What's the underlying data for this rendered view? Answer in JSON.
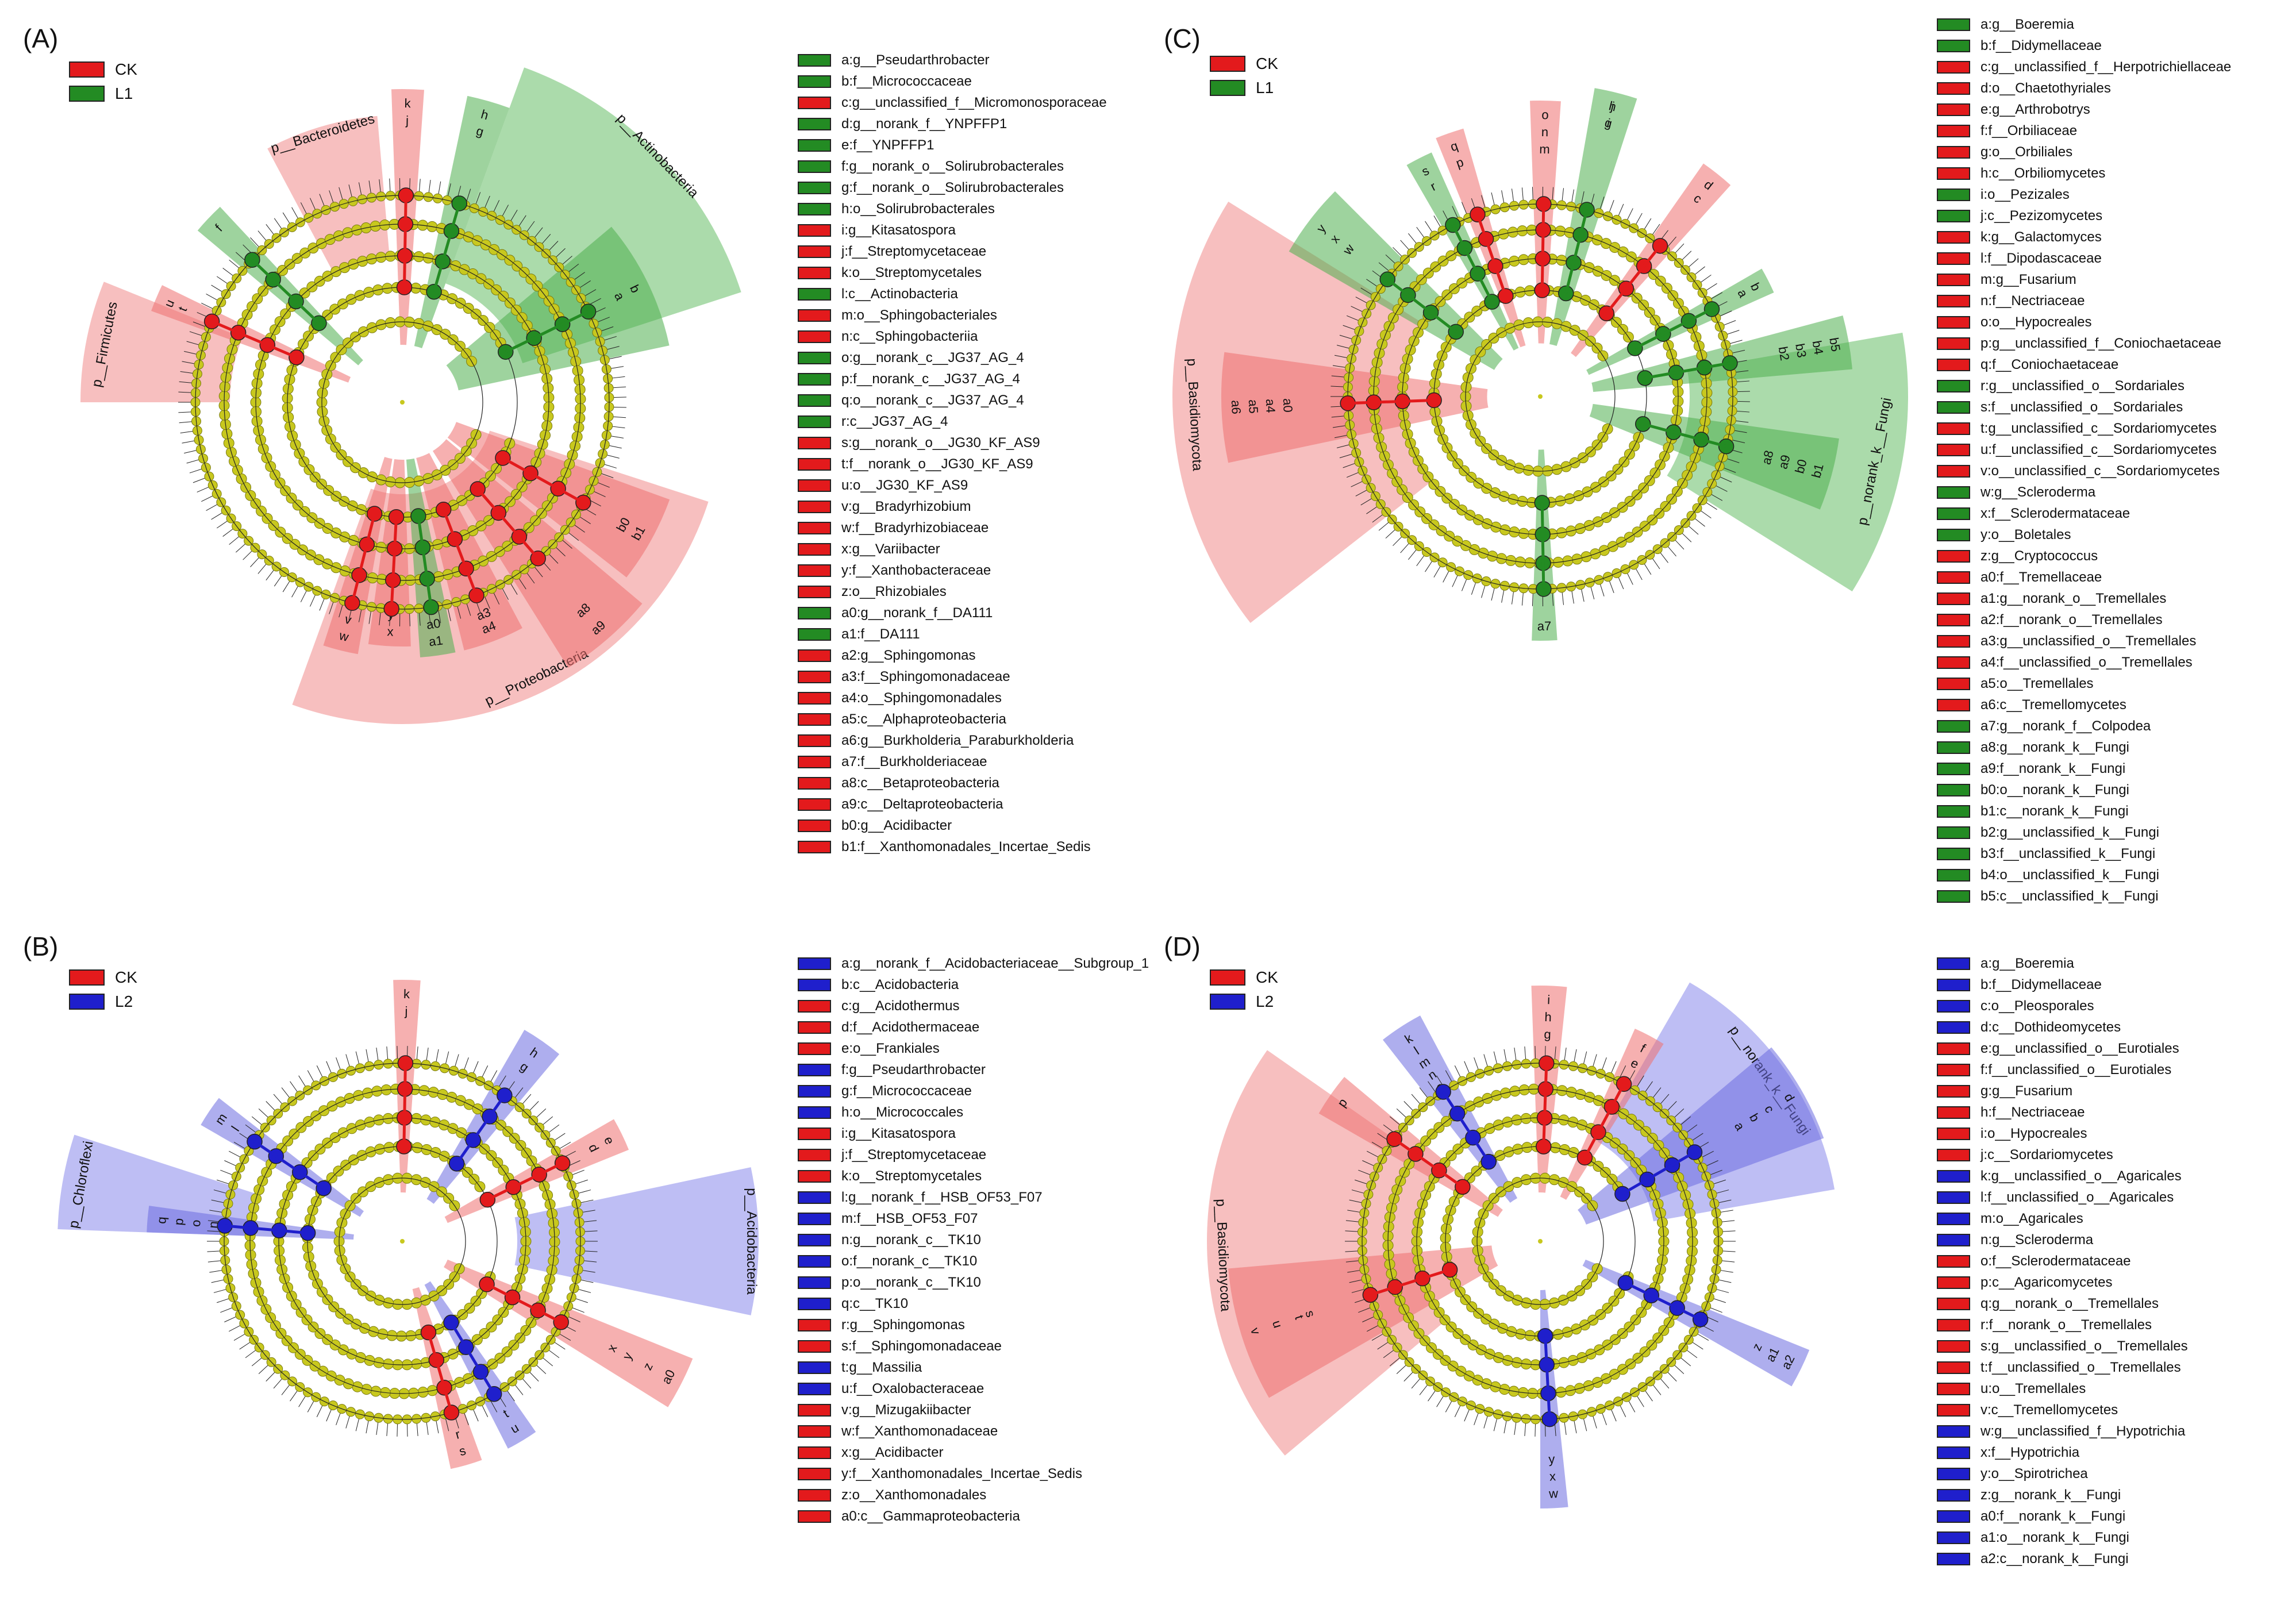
{
  "panels": [
    {
      "id": "A",
      "label": "(A)",
      "groups": [
        {
          "name": "CK",
          "color": "#e31a1c"
        },
        {
          "name": "L1",
          "color": "#238b23"
        }
      ],
      "wedges": [
        {
          "text": "p__Actinobacteria",
          "group": 1
        },
        {
          "text": "p__Bacteroidetes",
          "group": 0
        },
        {
          "text": "p__Firmicutes",
          "group": 0
        },
        {
          "text": "p__Proteobacteria",
          "group": 0
        }
      ],
      "features": [
        {
          "code": "a",
          "name": "g__Pseudarthrobacter",
          "group": 1
        },
        {
          "code": "b",
          "name": "f__Micrococcaceae",
          "group": 1
        },
        {
          "code": "c",
          "name": "g__unclassified_f__Micromonosporaceae",
          "group": 0
        },
        {
          "code": "d",
          "name": "g__norank_f__YNPFFP1",
          "group": 1
        },
        {
          "code": "e",
          "name": "f__YNPFFP1",
          "group": 1
        },
        {
          "code": "f",
          "name": "g__norank_o__Solirubrobacterales",
          "group": 1
        },
        {
          "code": "g",
          "name": "f__norank_o__Solirubrobacterales",
          "group": 1
        },
        {
          "code": "h",
          "name": "o__Solirubrobacterales",
          "group": 1
        },
        {
          "code": "i",
          "name": "g__Kitasatospora",
          "group": 0
        },
        {
          "code": "j",
          "name": "f__Streptomycetaceae",
          "group": 0
        },
        {
          "code": "k",
          "name": "o__Streptomycetales",
          "group": 0
        },
        {
          "code": "l",
          "name": "c__Actinobacteria",
          "group": 1
        },
        {
          "code": "m",
          "name": "o__Sphingobacteriales",
          "group": 0
        },
        {
          "code": "n",
          "name": "c__Sphingobacteriia",
          "group": 0
        },
        {
          "code": "o",
          "name": "g__norank_c__JG37_AG_4",
          "group": 1
        },
        {
          "code": "p",
          "name": "f__norank_c__JG37_AG_4",
          "group": 1
        },
        {
          "code": "q",
          "name": "o__norank_c__JG37_AG_4",
          "group": 1
        },
        {
          "code": "r",
          "name": "c__JG37_AG_4",
          "group": 1
        },
        {
          "code": "s",
          "name": "g__norank_o__JG30_KF_AS9",
          "group": 0
        },
        {
          "code": "t",
          "name": "f__norank_o__JG30_KF_AS9",
          "group": 0
        },
        {
          "code": "u",
          "name": "o__JG30_KF_AS9",
          "group": 0
        },
        {
          "code": "v",
          "name": "g__Bradyrhizobium",
          "group": 0
        },
        {
          "code": "w",
          "name": "f__Bradyrhizobiaceae",
          "group": 0
        },
        {
          "code": "x",
          "name": "g__Variibacter",
          "group": 0
        },
        {
          "code": "y",
          "name": "f__Xanthobacteraceae",
          "group": 0
        },
        {
          "code": "z",
          "name": "o__Rhizobiales",
          "group": 0
        },
        {
          "code": "a0",
          "name": "g__norank_f__DA111",
          "group": 1
        },
        {
          "code": "a1",
          "name": "f__DA111",
          "group": 1
        },
        {
          "code": "a2",
          "name": "g__Sphingomonas",
          "group": 0
        },
        {
          "code": "a3",
          "name": "f__Sphingomonadaceae",
          "group": 0
        },
        {
          "code": "a4",
          "name": "o__Sphingomonadales",
          "group": 0
        },
        {
          "code": "a5",
          "name": "c__Alphaproteobacteria",
          "group": 0
        },
        {
          "code": "a6",
          "name": "g__Burkholderia_Paraburkholderia",
          "group": 0
        },
        {
          "code": "a7",
          "name": "f__Burkholderiaceae",
          "group": 0
        },
        {
          "code": "a8",
          "name": "c__Betaproteobacteria",
          "group": 0
        },
        {
          "code": "a9",
          "name": "c__Deltaproteobacteria",
          "group": 0
        },
        {
          "code": "b0",
          "name": "g__Acidibacter",
          "group": 0
        },
        {
          "code": "b1",
          "name": "f__Xanthomonadales_Incertae_Sedis",
          "group": 0
        }
      ]
    },
    {
      "id": "B",
      "label": "(B)",
      "groups": [
        {
          "name": "CK",
          "color": "#e31a1c"
        },
        {
          "name": "L2",
          "color": "#1f1fcc"
        }
      ],
      "wedges": [
        {
          "text": "p__Chloroflexi",
          "group": 1
        },
        {
          "text": "p__Acidobacteria",
          "group": 1
        }
      ],
      "features": [
        {
          "code": "a",
          "name": "g__norank_f__Acidobacteriaceae__Subgroup_1",
          "group": 1
        },
        {
          "code": "b",
          "name": "c__Acidobacteria",
          "group": 1
        },
        {
          "code": "c",
          "name": "g__Acidothermus",
          "group": 0
        },
        {
          "code": "d",
          "name": "f__Acidothermaceae",
          "group": 0
        },
        {
          "code": "e",
          "name": "o__Frankiales",
          "group": 0
        },
        {
          "code": "f",
          "name": "g__Pseudarthrobacter",
          "group": 1
        },
        {
          "code": "g",
          "name": "f__Micrococcaceae",
          "group": 1
        },
        {
          "code": "h",
          "name": "o__Micrococcales",
          "group": 1
        },
        {
          "code": "i",
          "name": "g__Kitasatospora",
          "group": 0
        },
        {
          "code": "j",
          "name": "f__Streptomycetaceae",
          "group": 0
        },
        {
          "code": "k",
          "name": "o__Streptomycetales",
          "group": 0
        },
        {
          "code": "l",
          "name": "g__norank_f__HSB_OF53_F07",
          "group": 1
        },
        {
          "code": "m",
          "name": "f__HSB_OF53_F07",
          "group": 1
        },
        {
          "code": "n",
          "name": "g__norank_c__TK10",
          "group": 1
        },
        {
          "code": "o",
          "name": "f__norank_c__TK10",
          "group": 1
        },
        {
          "code": "p",
          "name": "o__norank_c__TK10",
          "group": 1
        },
        {
          "code": "q",
          "name": "c__TK10",
          "group": 1
        },
        {
          "code": "r",
          "name": "g__Sphingomonas",
          "group": 0
        },
        {
          "code": "s",
          "name": "f__Sphingomonadaceae",
          "group": 0
        },
        {
          "code": "t",
          "name": "g__Massilia",
          "group": 1
        },
        {
          "code": "u",
          "name": "f__Oxalobacteraceae",
          "group": 1
        },
        {
          "code": "v",
          "name": "g__Mizugakiibacter",
          "group": 0
        },
        {
          "code": "w",
          "name": "f__Xanthomonadaceae",
          "group": 0
        },
        {
          "code": "x",
          "name": "g__Acidibacter",
          "group": 0
        },
        {
          "code": "y",
          "name": "f__Xanthomonadales_Incertae_Sedis",
          "group": 0
        },
        {
          "code": "z",
          "name": "o__Xanthomonadales",
          "group": 0
        },
        {
          "code": "a0",
          "name": "c__Gammaproteobacteria",
          "group": 0
        }
      ]
    },
    {
      "id": "C",
      "label": "(C)",
      "groups": [
        {
          "name": "CK",
          "color": "#e31a1c"
        },
        {
          "name": "L1",
          "color": "#238b23"
        }
      ],
      "wedges": [
        {
          "text": "p__Basidiomycota",
          "group": 0
        },
        {
          "text": "p__norank_k__Fungi",
          "group": 1
        }
      ],
      "features": [
        {
          "code": "a",
          "name": "g__Boeremia",
          "group": 1
        },
        {
          "code": "b",
          "name": "f__Didymellaceae",
          "group": 1
        },
        {
          "code": "c",
          "name": "g__unclassified_f__Herpotrichiellaceae",
          "group": 0
        },
        {
          "code": "d",
          "name": "o__Chaetothyriales",
          "group": 0
        },
        {
          "code": "e",
          "name": "g__Arthrobotrys",
          "group": 0
        },
        {
          "code": "f",
          "name": "f__Orbiliaceae",
          "group": 0
        },
        {
          "code": "g",
          "name": "o__Orbiliales",
          "group": 0
        },
        {
          "code": "h",
          "name": "c__Orbiliomycetes",
          "group": 0
        },
        {
          "code": "i",
          "name": "o__Pezizales",
          "group": 1
        },
        {
          "code": "j",
          "name": "c__Pezizomycetes",
          "group": 1
        },
        {
          "code": "k",
          "name": "g__Galactomyces",
          "group": 0
        },
        {
          "code": "l",
          "name": "f__Dipodascaceae",
          "group": 0
        },
        {
          "code": "m",
          "name": "g__Fusarium",
          "group": 0
        },
        {
          "code": "n",
          "name": "f__Nectriaceae",
          "group": 0
        },
        {
          "code": "o",
          "name": "o__Hypocreales",
          "group": 0
        },
        {
          "code": "p",
          "name": "g__unclassified_f__Coniochaetaceae",
          "group": 0
        },
        {
          "code": "q",
          "name": "f__Coniochaetaceae",
          "group": 0
        },
        {
          "code": "r",
          "name": "g__unclassified_o__Sordariales",
          "group": 1
        },
        {
          "code": "s",
          "name": "f__unclassified_o__Sordariales",
          "group": 1
        },
        {
          "code": "t",
          "name": "g__unclassified_c__Sordariomycetes",
          "group": 0
        },
        {
          "code": "u",
          "name": "f__unclassified_c__Sordariomycetes",
          "group": 0
        },
        {
          "code": "v",
          "name": "o__unclassified_c__Sordariomycetes",
          "group": 0
        },
        {
          "code": "w",
          "name": "g__Scleroderma",
          "group": 1
        },
        {
          "code": "x",
          "name": "f__Sclerodermataceae",
          "group": 1
        },
        {
          "code": "y",
          "name": "o__Boletales",
          "group": 1
        },
        {
          "code": "z",
          "name": "g__Cryptococcus",
          "group": 0
        },
        {
          "code": "a0",
          "name": "f__Tremellaceae",
          "group": 0
        },
        {
          "code": "a1",
          "name": "g__norank_o__Tremellales",
          "group": 0
        },
        {
          "code": "a2",
          "name": "f__norank_o__Tremellales",
          "group": 0
        },
        {
          "code": "a3",
          "name": "g__unclassified_o__Tremellales",
          "group": 0
        },
        {
          "code": "a4",
          "name": "f__unclassified_o__Tremellales",
          "group": 0
        },
        {
          "code": "a5",
          "name": "o__Tremellales",
          "group": 0
        },
        {
          "code": "a6",
          "name": "c__Tremellomycetes",
          "group": 0
        },
        {
          "code": "a7",
          "name": "g__norank_f__Colpodea",
          "group": 1
        },
        {
          "code": "a8",
          "name": "g__norank_k__Fungi",
          "group": 1
        },
        {
          "code": "a9",
          "name": "f__norank_k__Fungi",
          "group": 1
        },
        {
          "code": "b0",
          "name": "o__norank_k__Fungi",
          "group": 1
        },
        {
          "code": "b1",
          "name": "c__norank_k__Fungi",
          "group": 1
        },
        {
          "code": "b2",
          "name": "g__unclassified_k__Fungi",
          "group": 1
        },
        {
          "code": "b3",
          "name": "f__unclassified_k__Fungi",
          "group": 1
        },
        {
          "code": "b4",
          "name": "o__unclassified_k__Fungi",
          "group": 1
        },
        {
          "code": "b5",
          "name": "c__unclassified_k__Fungi",
          "group": 1
        }
      ]
    },
    {
      "id": "D",
      "label": "(D)",
      "groups": [
        {
          "name": "CK",
          "color": "#e31a1c"
        },
        {
          "name": "L2",
          "color": "#1f1fcc"
        }
      ],
      "wedges": [
        {
          "text": "p__Basidiomycota",
          "group": 0
        },
        {
          "text": "p__norank_k__Fungi",
          "group": 1
        }
      ],
      "features": [
        {
          "code": "a",
          "name": "g__Boeremia",
          "group": 1
        },
        {
          "code": "b",
          "name": "f__Didymellaceae",
          "group": 1
        },
        {
          "code": "c",
          "name": "o__Pleosporales",
          "group": 1
        },
        {
          "code": "d",
          "name": "c__Dothideomycetes",
          "group": 1
        },
        {
          "code": "e",
          "name": "g__unclassified_o__Eurotiales",
          "group": 0
        },
        {
          "code": "f",
          "name": "f__unclassified_o__Eurotiales",
          "group": 0
        },
        {
          "code": "g",
          "name": "g__Fusarium",
          "group": 0
        },
        {
          "code": "h",
          "name": "f__Nectriaceae",
          "group": 0
        },
        {
          "code": "i",
          "name": "o__Hypocreales",
          "group": 0
        },
        {
          "code": "j",
          "name": "c__Sordariomycetes",
          "group": 0
        },
        {
          "code": "k",
          "name": "g__unclassified_o__Agaricales",
          "group": 1
        },
        {
          "code": "l",
          "name": "f__unclassified_o__Agaricales",
          "group": 1
        },
        {
          "code": "m",
          "name": "o__Agaricales",
          "group": 1
        },
        {
          "code": "n",
          "name": "g__Scleroderma",
          "group": 1
        },
        {
          "code": "o",
          "name": "f__Sclerodermataceae",
          "group": 0
        },
        {
          "code": "p",
          "name": "c__Agaricomycetes",
          "group": 0
        },
        {
          "code": "q",
          "name": "g__norank_o__Tremellales",
          "group": 0
        },
        {
          "code": "r",
          "name": "f__norank_o__Tremellales",
          "group": 0
        },
        {
          "code": "s",
          "name": "g__unclassified_o__Tremellales",
          "group": 0
        },
        {
          "code": "t",
          "name": "f__unclassified_o__Tremellales",
          "group": 0
        },
        {
          "code": "u",
          "name": "o__Tremellales",
          "group": 0
        },
        {
          "code": "v",
          "name": "c__Tremellomycetes",
          "group": 0
        },
        {
          "code": "w",
          "name": "g__unclassified_f__Hypotrichia",
          "group": 1
        },
        {
          "code": "x",
          "name": "f__Hypotrichia",
          "group": 1
        },
        {
          "code": "y",
          "name": "o__Spirotrichea",
          "group": 1
        },
        {
          "code": "z",
          "name": "g__norank_k__Fungi",
          "group": 1
        },
        {
          "code": "a0",
          "name": "f__norank_k__Fungi",
          "group": 1
        },
        {
          "code": "a1",
          "name": "o__norank_k__Fungi",
          "group": 1
        },
        {
          "code": "a2",
          "name": "c__norank_k__Fungi",
          "group": 1
        }
      ]
    }
  ]
}
